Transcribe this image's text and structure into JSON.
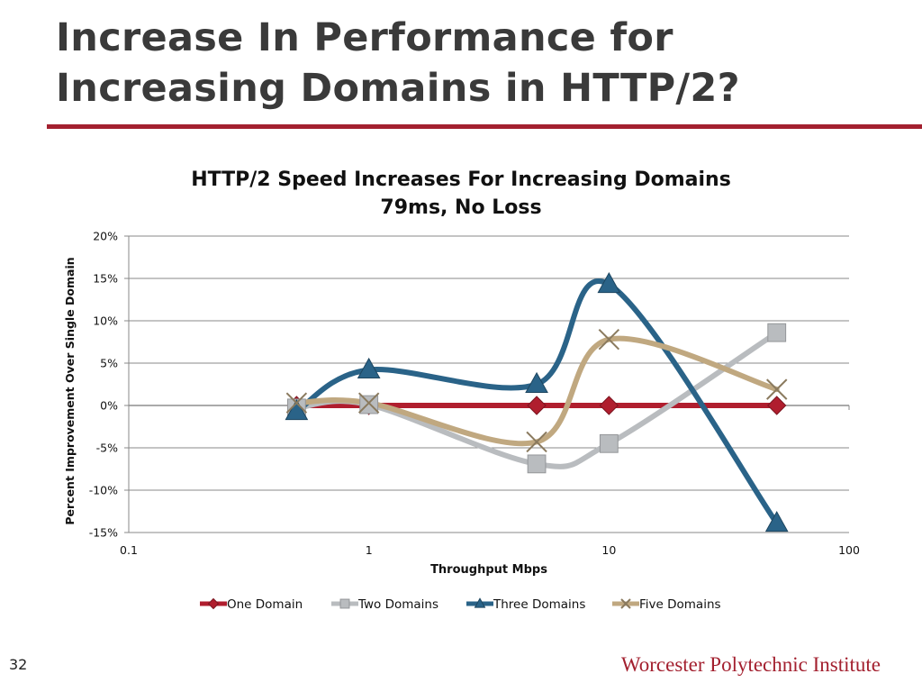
{
  "slide": {
    "title_line1": "Increase In Performance for",
    "title_line2": "Increasing Domains in HTTP/2?",
    "page_number": "32",
    "footer": "Worcester Polytechnic Institute",
    "accent_color": "#a3202f"
  },
  "chart_data": {
    "type": "line",
    "title": "HTTP/2 Speed Increases For Increasing Domains",
    "subtitle": "79ms, No Loss",
    "xlabel": "Throughput Mbps",
    "ylabel": "Percent Improvement Over Single Domain",
    "xscale": "log",
    "xlim": [
      0.1,
      100
    ],
    "ylim": [
      -15,
      20
    ],
    "xticks": [
      0.1,
      1,
      10,
      100
    ],
    "xtick_labels": [
      "0.1",
      "1",
      "10",
      "100"
    ],
    "yticks": [
      -15,
      -10,
      -5,
      0,
      5,
      10,
      15,
      20
    ],
    "ytick_labels": [
      "-15%",
      "-10%",
      "-5%",
      "0%",
      "5%",
      "10%",
      "15%",
      "20%"
    ],
    "grid": "horizontal",
    "legend_position": "bottom",
    "x": [
      0.5,
      1,
      5,
      10,
      50
    ],
    "series": [
      {
        "name": "One Domain",
        "color": "#b01e2e",
        "marker": "diamond",
        "values": [
          0,
          0,
          0,
          0,
          0
        ]
      },
      {
        "name": "Two Domains",
        "color": "#b9bcbf",
        "marker": "square",
        "values": [
          -0.3,
          0.1,
          -6.9,
          -4.5,
          8.6
        ]
      },
      {
        "name": "Three Domains",
        "color": "#2a6388",
        "marker": "triangle",
        "values": [
          -0.7,
          4.2,
          2.5,
          14.3,
          -13.9
        ]
      },
      {
        "name": "Five Domains",
        "color": "#c0a880",
        "marker": "x",
        "values": [
          0.3,
          0.3,
          -4.3,
          7.8,
          1.9
        ]
      }
    ]
  }
}
